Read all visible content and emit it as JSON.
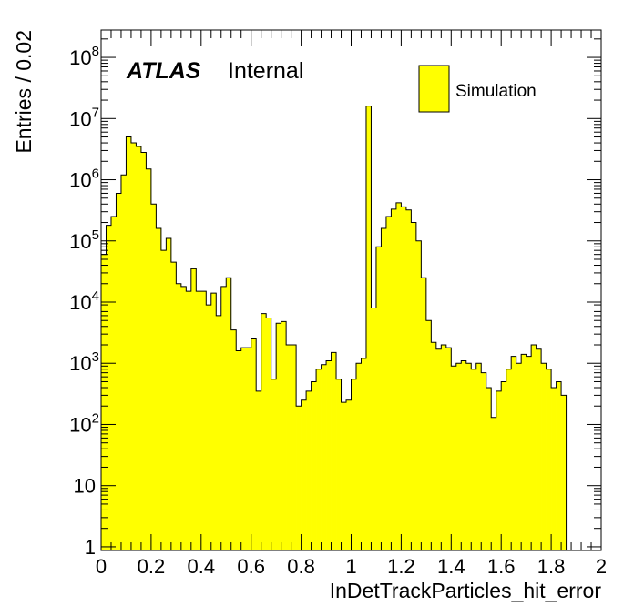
{
  "chart_data": {
    "type": "bar",
    "xlabel": "InDetTrackParticles_hit_error",
    "ylabel": "Entries / 0.02",
    "xlim": [
      0,
      2
    ],
    "ylim": [
      0.87,
      280000000
    ],
    "y_scale": "log",
    "bin_width": 0.02,
    "x_ticks": [
      "0",
      "0.2",
      "0.4",
      "0.6",
      "0.8",
      "1",
      "1.2",
      "1.4",
      "1.6",
      "1.8",
      "2"
    ],
    "y_ticks": [
      {
        "value": 1,
        "label": "1",
        "exponent": ""
      },
      {
        "value": 10,
        "label": "10",
        "exponent": ""
      },
      {
        "value": 100,
        "label": "10",
        "exponent": "2"
      },
      {
        "value": 1000,
        "label": "10",
        "exponent": "3"
      },
      {
        "value": 10000,
        "label": "10",
        "exponent": "4"
      },
      {
        "value": 100000,
        "label": "10",
        "exponent": "5"
      },
      {
        "value": 1000000,
        "label": "10",
        "exponent": "6"
      },
      {
        "value": 10000000,
        "label": "10",
        "exponent": "7"
      },
      {
        "value": 100000000,
        "label": "10",
        "exponent": "8"
      }
    ],
    "atlas_label": "ATLAS",
    "atlas_status": "Internal",
    "legend_position": "top-right",
    "series": [
      {
        "name": "Simulation",
        "color": "#ffff00",
        "edge_color": "#000000",
        "values": [
          60000,
          180000,
          250000,
          600000,
          1200000,
          5000000,
          4000000,
          3500000,
          2800000,
          1500000,
          400000,
          160000,
          70000,
          110000,
          45000,
          20000,
          18000,
          15000,
          35000,
          15000,
          15000,
          9000,
          14000,
          6000,
          18000,
          25000,
          3500,
          1600,
          1800,
          1800,
          2500,
          350,
          6500,
          5500,
          550,
          4500,
          4800,
          2000,
          2000,
          200,
          250,
          350,
          500,
          800,
          950,
          1100,
          1500,
          550,
          230,
          250,
          550,
          1000,
          1200,
          16000000,
          8000,
          80000,
          160000,
          250000,
          330000,
          420000,
          360000,
          320000,
          200000,
          100000,
          25000,
          5000,
          2200,
          1700,
          2000,
          1800,
          900,
          1000,
          1100,
          1000,
          800,
          1000,
          700,
          400,
          130,
          350,
          500,
          800,
          1300,
          1000,
          1400,
          1300,
          2000,
          1700,
          1000,
          800,
          400,
          500,
          300
        ]
      }
    ]
  }
}
